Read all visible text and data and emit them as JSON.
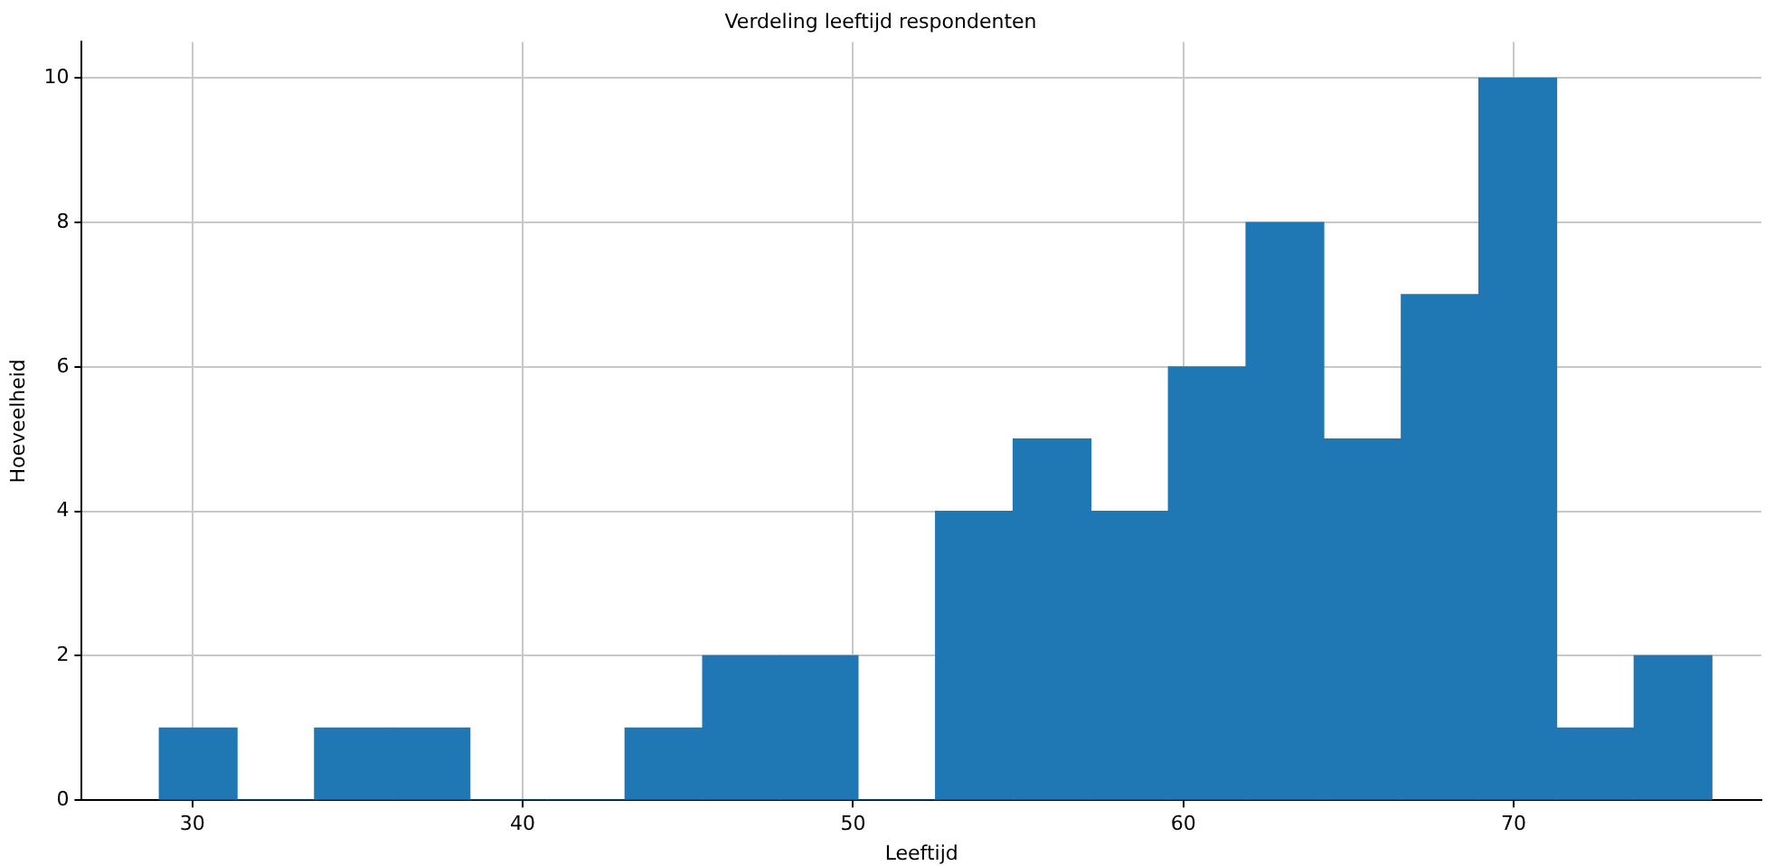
{
  "chart_data": {
    "type": "histogram",
    "title": "Verdeling leeftijd respondenten",
    "xlabel": "Leeftijd",
    "ylabel": "Hoeveelheid",
    "bins": [
      29,
      31.35,
      33.7,
      36.05,
      38.4,
      40.75,
      43.1,
      45.45,
      47.8,
      50.15,
      52.5,
      54.85,
      57.2,
      59.55,
      61.9,
      64.25,
      66.6,
      68.95,
      71.3,
      73.65,
      76
    ],
    "values": [
      1,
      0,
      1,
      1,
      0,
      0,
      1,
      2,
      2,
      0,
      4,
      5,
      4,
      6,
      8,
      5,
      7,
      10,
      1,
      2
    ],
    "color": "#1f77b4",
    "xlim": [
      26.65,
      77.5
    ],
    "ylim": [
      0,
      10.5
    ],
    "xticks": [
      30,
      40,
      50,
      60,
      70
    ],
    "yticks": [
      0,
      2,
      4,
      6,
      8,
      10
    ],
    "grid": true
  }
}
